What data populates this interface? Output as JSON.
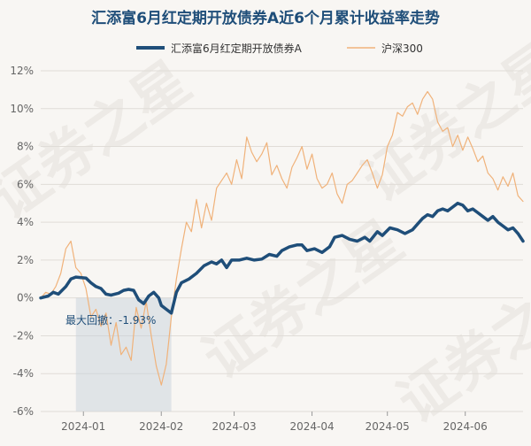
{
  "chart_data": {
    "type": "line",
    "title": "汇添富6月红定期开放债券A近6个月累计收益率走势",
    "watermark": "证券之星",
    "legend": {
      "position": "top-center",
      "items": [
        {
          "name": "汇添富6月红定期开放债券A",
          "color": "#1f4e79"
        },
        {
          "name": "沪深300",
          "color": "#f0b27a"
        }
      ]
    },
    "ylim": [
      -6,
      12
    ],
    "yticks": [
      "12%",
      "10%",
      "8%",
      "6%",
      "4%",
      "2%",
      "0%",
      "-2%",
      "-4%",
      "-6%"
    ],
    "ytick_values": [
      12,
      10,
      8,
      6,
      4,
      2,
      0,
      -2,
      -4,
      -6
    ],
    "xticks": [
      "2024-01",
      "2024-02",
      "2024-03",
      "2024-04",
      "2024-05",
      "2024-06"
    ],
    "xtick_dates": [
      "2024-01-01",
      "2024-02-01",
      "2024-03-01",
      "2024-04-01",
      "2024-05-01",
      "2024-06-01"
    ],
    "x_range": [
      "2023-12-15",
      "2024-06-24"
    ],
    "grid": true,
    "drawdown": {
      "label": "最大回撤：-1.93%",
      "start": "2023-12-29",
      "end": "2024-02-05"
    },
    "series": [
      {
        "name": "汇添富6月红定期开放债券A",
        "color": "#1f4e79",
        "points": [
          [
            "2023-12-15",
            0.0
          ],
          [
            "2023-12-18",
            0.1
          ],
          [
            "2023-12-20",
            0.3
          ],
          [
            "2023-12-22",
            0.2
          ],
          [
            "2023-12-25",
            0.6
          ],
          [
            "2023-12-27",
            1.0
          ],
          [
            "2023-12-29",
            1.1
          ],
          [
            "2024-01-02",
            1.05
          ],
          [
            "2024-01-04",
            0.8
          ],
          [
            "2024-01-06",
            0.6
          ],
          [
            "2024-01-08",
            0.5
          ],
          [
            "2024-01-10",
            0.2
          ],
          [
            "2024-01-12",
            0.15
          ],
          [
            "2024-01-15",
            0.25
          ],
          [
            "2024-01-17",
            0.4
          ],
          [
            "2024-01-19",
            0.45
          ],
          [
            "2024-01-21",
            0.4
          ],
          [
            "2024-01-23",
            -0.1
          ],
          [
            "2024-01-25",
            -0.3
          ],
          [
            "2024-01-27",
            0.1
          ],
          [
            "2024-01-29",
            0.3
          ],
          [
            "2024-01-31",
            0.0
          ],
          [
            "2024-02-01",
            -0.4
          ],
          [
            "2024-02-03",
            -0.6
          ],
          [
            "2024-02-05",
            -0.8
          ],
          [
            "2024-02-07",
            0.3
          ],
          [
            "2024-02-09",
            0.8
          ],
          [
            "2024-02-12",
            1.0
          ],
          [
            "2024-02-15",
            1.3
          ],
          [
            "2024-02-18",
            1.7
          ],
          [
            "2024-02-21",
            1.9
          ],
          [
            "2024-02-23",
            1.8
          ],
          [
            "2024-02-25",
            2.0
          ],
          [
            "2024-02-27",
            1.6
          ],
          [
            "2024-02-29",
            2.0
          ],
          [
            "2024-03-03",
            2.0
          ],
          [
            "2024-03-06",
            2.1
          ],
          [
            "2024-03-09",
            2.0
          ],
          [
            "2024-03-12",
            2.05
          ],
          [
            "2024-03-15",
            2.3
          ],
          [
            "2024-03-18",
            2.2
          ],
          [
            "2024-03-20",
            2.5
          ],
          [
            "2024-03-23",
            2.7
          ],
          [
            "2024-03-26",
            2.8
          ],
          [
            "2024-03-28",
            2.8
          ],
          [
            "2024-03-30",
            2.5
          ],
          [
            "2024-04-02",
            2.6
          ],
          [
            "2024-04-05",
            2.4
          ],
          [
            "2024-04-08",
            2.7
          ],
          [
            "2024-04-10",
            3.2
          ],
          [
            "2024-04-13",
            3.3
          ],
          [
            "2024-04-16",
            3.1
          ],
          [
            "2024-04-19",
            3.0
          ],
          [
            "2024-04-22",
            3.2
          ],
          [
            "2024-04-24",
            3.0
          ],
          [
            "2024-04-27",
            3.5
          ],
          [
            "2024-04-29",
            3.3
          ],
          [
            "2024-05-02",
            3.7
          ],
          [
            "2024-05-05",
            3.6
          ],
          [
            "2024-05-08",
            3.4
          ],
          [
            "2024-05-11",
            3.6
          ],
          [
            "2024-05-13",
            3.9
          ],
          [
            "2024-05-15",
            4.2
          ],
          [
            "2024-05-17",
            4.4
          ],
          [
            "2024-05-19",
            4.3
          ],
          [
            "2024-05-21",
            4.6
          ],
          [
            "2024-05-23",
            4.7
          ],
          [
            "2024-05-25",
            4.6
          ],
          [
            "2024-05-27",
            4.8
          ],
          [
            "2024-05-29",
            5.0
          ],
          [
            "2024-05-31",
            4.9
          ],
          [
            "2024-06-02",
            4.6
          ],
          [
            "2024-06-04",
            4.7
          ],
          [
            "2024-06-06",
            4.5
          ],
          [
            "2024-06-08",
            4.3
          ],
          [
            "2024-06-10",
            4.1
          ],
          [
            "2024-06-12",
            4.3
          ],
          [
            "2024-06-14",
            4.0
          ],
          [
            "2024-06-16",
            3.8
          ],
          [
            "2024-06-18",
            3.6
          ],
          [
            "2024-06-20",
            3.7
          ],
          [
            "2024-06-22",
            3.4
          ],
          [
            "2024-06-24",
            3.0
          ]
        ]
      },
      {
        "name": "沪深300",
        "color": "#f0b27a",
        "points": [
          [
            "2023-12-15",
            0.0
          ],
          [
            "2023-12-17",
            0.3
          ],
          [
            "2023-12-19",
            0.2
          ],
          [
            "2023-12-21",
            0.6
          ],
          [
            "2023-12-23",
            1.3
          ],
          [
            "2023-12-25",
            2.6
          ],
          [
            "2023-12-27",
            3.0
          ],
          [
            "2023-12-29",
            1.6
          ],
          [
            "2023-12-31",
            1.3
          ],
          [
            "2024-01-02",
            0.5
          ],
          [
            "2024-01-04",
            -1.0
          ],
          [
            "2024-01-06",
            -0.6
          ],
          [
            "2024-01-08",
            -1.5
          ],
          [
            "2024-01-10",
            -0.8
          ],
          [
            "2024-01-12",
            -2.5
          ],
          [
            "2024-01-14",
            -1.3
          ],
          [
            "2024-01-16",
            -3.0
          ],
          [
            "2024-01-18",
            -2.6
          ],
          [
            "2024-01-20",
            -3.3
          ],
          [
            "2024-01-22",
            -0.5
          ],
          [
            "2024-01-24",
            -1.6
          ],
          [
            "2024-01-26",
            -0.2
          ],
          [
            "2024-01-28",
            -2.0
          ],
          [
            "2024-01-30",
            -3.6
          ],
          [
            "2024-02-01",
            -4.6
          ],
          [
            "2024-02-03",
            -3.5
          ],
          [
            "2024-02-05",
            -1.0
          ],
          [
            "2024-02-07",
            1.0
          ],
          [
            "2024-02-09",
            2.6
          ],
          [
            "2024-02-11",
            4.0
          ],
          [
            "2024-02-13",
            3.5
          ],
          [
            "2024-02-15",
            5.2
          ],
          [
            "2024-02-17",
            3.7
          ],
          [
            "2024-02-19",
            5.0
          ],
          [
            "2024-02-21",
            4.1
          ],
          [
            "2024-02-23",
            5.8
          ],
          [
            "2024-02-25",
            6.2
          ],
          [
            "2024-02-27",
            6.6
          ],
          [
            "2024-02-29",
            6.0
          ],
          [
            "2024-03-02",
            7.3
          ],
          [
            "2024-03-04",
            6.3
          ],
          [
            "2024-03-06",
            8.5
          ],
          [
            "2024-03-08",
            7.7
          ],
          [
            "2024-03-10",
            7.2
          ],
          [
            "2024-03-12",
            7.6
          ],
          [
            "2024-03-14",
            8.2
          ],
          [
            "2024-03-16",
            6.5
          ],
          [
            "2024-03-18",
            7.0
          ],
          [
            "2024-03-20",
            6.3
          ],
          [
            "2024-03-22",
            5.8
          ],
          [
            "2024-03-24",
            6.9
          ],
          [
            "2024-03-26",
            7.4
          ],
          [
            "2024-03-28",
            8.0
          ],
          [
            "2024-03-30",
            6.8
          ],
          [
            "2024-04-01",
            7.6
          ],
          [
            "2024-04-03",
            6.3
          ],
          [
            "2024-04-05",
            5.8
          ],
          [
            "2024-04-07",
            6.0
          ],
          [
            "2024-04-09",
            6.6
          ],
          [
            "2024-04-11",
            5.5
          ],
          [
            "2024-04-13",
            5.0
          ],
          [
            "2024-04-15",
            6.0
          ],
          [
            "2024-04-17",
            6.2
          ],
          [
            "2024-04-19",
            6.6
          ],
          [
            "2024-04-21",
            7.0
          ],
          [
            "2024-04-23",
            7.3
          ],
          [
            "2024-04-25",
            6.6
          ],
          [
            "2024-04-27",
            5.8
          ],
          [
            "2024-04-29",
            6.5
          ],
          [
            "2024-05-01",
            8.0
          ],
          [
            "2024-05-03",
            8.6
          ],
          [
            "2024-05-05",
            9.8
          ],
          [
            "2024-05-07",
            9.6
          ],
          [
            "2024-05-09",
            10.1
          ],
          [
            "2024-05-11",
            10.3
          ],
          [
            "2024-05-13",
            9.7
          ],
          [
            "2024-05-15",
            10.5
          ],
          [
            "2024-05-17",
            10.9
          ],
          [
            "2024-05-19",
            10.5
          ],
          [
            "2024-05-21",
            9.3
          ],
          [
            "2024-05-23",
            8.8
          ],
          [
            "2024-05-25",
            9.0
          ],
          [
            "2024-05-27",
            8.0
          ],
          [
            "2024-05-29",
            8.6
          ],
          [
            "2024-05-31",
            7.8
          ],
          [
            "2024-06-02",
            8.5
          ],
          [
            "2024-06-04",
            7.9
          ],
          [
            "2024-06-06",
            7.2
          ],
          [
            "2024-06-08",
            7.5
          ],
          [
            "2024-06-10",
            6.6
          ],
          [
            "2024-06-12",
            6.3
          ],
          [
            "2024-06-14",
            5.7
          ],
          [
            "2024-06-16",
            6.4
          ],
          [
            "2024-06-18",
            5.9
          ],
          [
            "2024-06-20",
            6.6
          ],
          [
            "2024-06-22",
            5.4
          ],
          [
            "2024-06-24",
            5.1
          ]
        ]
      }
    ]
  }
}
